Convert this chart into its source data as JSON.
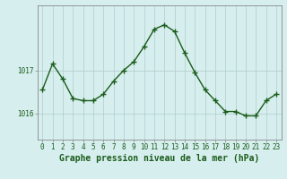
{
  "x": [
    0,
    1,
    2,
    3,
    4,
    5,
    6,
    7,
    8,
    9,
    10,
    11,
    12,
    13,
    14,
    15,
    16,
    17,
    18,
    19,
    20,
    21,
    22,
    23
  ],
  "y": [
    1016.55,
    1017.15,
    1016.8,
    1016.35,
    1016.3,
    1016.3,
    1016.45,
    1016.75,
    1017.0,
    1017.2,
    1017.55,
    1017.95,
    1018.05,
    1017.9,
    1017.4,
    1016.95,
    1016.55,
    1016.3,
    1016.05,
    1016.05,
    1015.95,
    1015.95,
    1016.3,
    1016.45
  ],
  "line_color": "#1a5c1a",
  "marker": "+",
  "marker_size": 4,
  "line_width": 1.0,
  "bg_color": "#d6eeee",
  "grid_color": "#b0cccc",
  "title": "Graphe pression niveau de la mer (hPa)",
  "title_fontsize": 7,
  "ytick_labels": [
    "1016",
    "1017"
  ],
  "ytick_values": [
    1016.0,
    1017.0
  ],
  "ylim": [
    1015.4,
    1018.5
  ],
  "xlim": [
    -0.5,
    23.5
  ],
  "tick_fontsize": 5.5,
  "title_color": "#1a5c1a",
  "axis_color": "#888888"
}
